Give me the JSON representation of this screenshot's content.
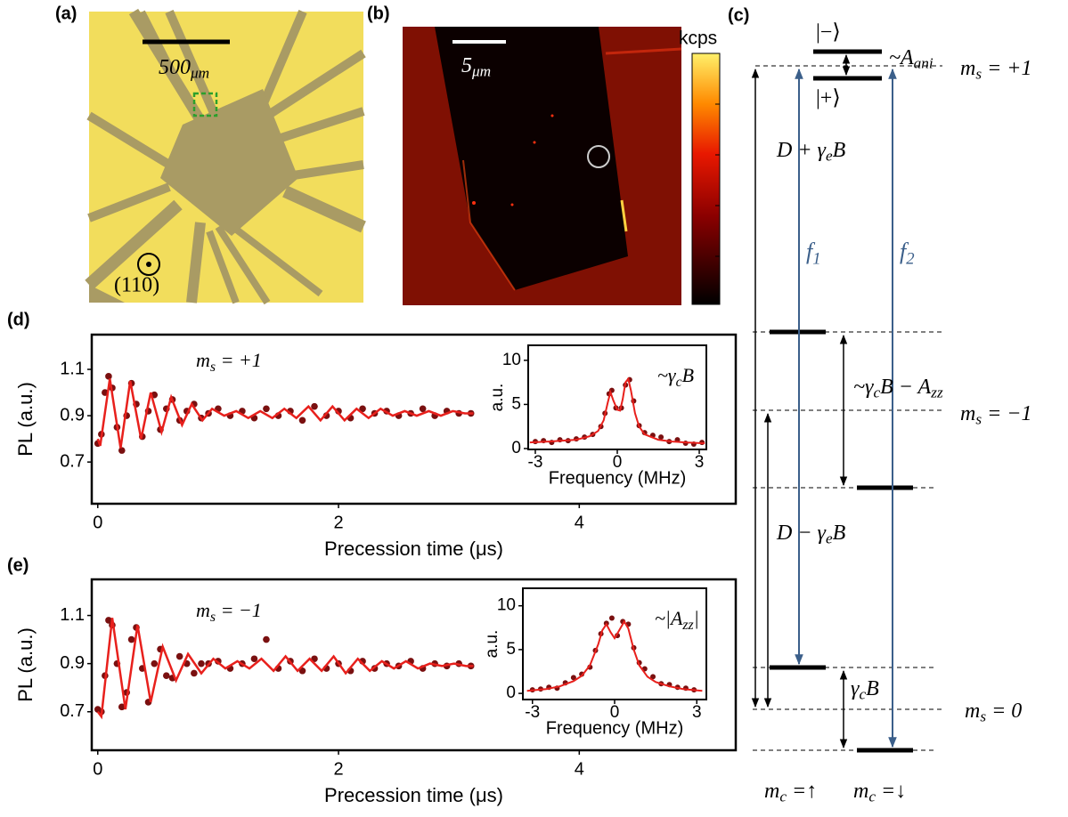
{
  "panel_a": {
    "label": "(a)",
    "scale_bar": [
      "500",
      "μm"
    ],
    "orientation": "(110)"
  },
  "panel_b": {
    "label": "(b)",
    "scale_bar": [
      "5",
      "μm"
    ],
    "colorbar_label": "kcps"
  },
  "diagram": {
    "label": "(c)",
    "ket_minus": "|−⟩",
    "ket_plus": "|+⟩",
    "A_ani": [
      "~A",
      "ani"
    ],
    "ms_p1": [
      "m",
      "s",
      " = +1"
    ],
    "ms_m1": [
      "m",
      "s",
      " = −1"
    ],
    "ms_0": [
      "m",
      "s",
      " = 0"
    ],
    "D_plus": [
      "D + γ",
      "e",
      "B"
    ],
    "D_minus": [
      "D − γ",
      "e",
      "B"
    ],
    "f1": [
      "f",
      "1"
    ],
    "f2": [
      "f",
      "2"
    ],
    "gcB_Azz": [
      "~γ",
      "c",
      "B − A",
      "zz"
    ],
    "gcB": [
      "γ",
      "c",
      "B"
    ],
    "mc_up": [
      "m",
      "c",
      " =↑"
    ],
    "mc_down": [
      "m",
      "c",
      " =↓"
    ]
  },
  "chart_data": [
    {
      "type": "scatter",
      "label": "(d)",
      "xlabel": "Precession time (μs)",
      "ylabel": "PL (a.u.)",
      "annotation": [
        "m",
        "s",
        " = +1"
      ],
      "xlim": [
        -0.05,
        5.3
      ],
      "ylim": [
        0.52,
        1.25
      ],
      "xticks": [
        0,
        2,
        4
      ],
      "yticks": [
        0.7,
        0.9,
        1.1
      ],
      "series": [
        {
          "color": "#7a1010",
          "marker": true,
          "x": [
            0,
            0.03,
            0.06,
            0.09,
            0.12,
            0.16,
            0.2,
            0.24,
            0.28,
            0.32,
            0.37,
            0.42,
            0.47,
            0.52,
            0.57,
            0.62,
            0.68,
            0.74,
            0.8,
            0.86,
            0.92,
            1.0,
            1.1,
            1.2,
            1.3,
            1.4,
            1.5,
            1.6,
            1.7,
            1.8,
            1.9,
            2.0,
            2.1,
            2.2,
            2.3,
            2.4,
            2.5,
            2.6,
            2.7,
            2.8,
            2.9,
            3.0,
            3.1
          ],
          "values": [
            0.78,
            0.82,
            1.0,
            1.07,
            1.02,
            0.85,
            0.75,
            0.9,
            1.04,
            0.95,
            0.81,
            0.92,
            0.99,
            0.84,
            0.93,
            0.97,
            0.88,
            0.92,
            0.95,
            0.89,
            0.91,
            0.93,
            0.9,
            0.92,
            0.89,
            0.93,
            0.9,
            0.92,
            0.88,
            0.94,
            0.9,
            0.92,
            0.89,
            0.93,
            0.91,
            0.92,
            0.9,
            0.91,
            0.93,
            0.9,
            0.92,
            0.91,
            0.91
          ]
        },
        {
          "color": "#e8201c",
          "line": true,
          "x": [
            0,
            0.02,
            0.1,
            0.19,
            0.27,
            0.36,
            0.44,
            0.53,
            0.61,
            0.7,
            0.78,
            0.87,
            0.95,
            1.05,
            1.15,
            1.25,
            1.35,
            1.45,
            1.55,
            1.65,
            1.75,
            1.85,
            1.95,
            2.05,
            2.15,
            2.25,
            2.35,
            2.45,
            2.55,
            2.65,
            2.75,
            2.85,
            2.95,
            3.05,
            3.12
          ],
          "values": [
            0.8,
            0.77,
            1.06,
            0.76,
            1.05,
            0.8,
            1.0,
            0.83,
            0.98,
            0.86,
            0.95,
            0.88,
            0.93,
            0.9,
            0.92,
            0.89,
            0.92,
            0.89,
            0.93,
            0.89,
            0.94,
            0.88,
            0.94,
            0.88,
            0.93,
            0.89,
            0.93,
            0.9,
            0.92,
            0.9,
            0.92,
            0.9,
            0.92,
            0.91,
            0.91
          ]
        }
      ]
    },
    {
      "type": "scatter",
      "xlabel": "Frequency (MHz)",
      "ylabel": "a.u.",
      "annotation": [
        "~γ",
        "c",
        "B"
      ],
      "xlim": [
        -3.26,
        3.26
      ],
      "ylim": [
        -0.1,
        11.7
      ],
      "xticks": [
        -3,
        0,
        3
      ],
      "yticks": [
        0,
        5,
        10
      ],
      "series": [
        {
          "color": "#7a1010",
          "marker": true,
          "x": [
            -3,
            -2.7,
            -2.4,
            -2.1,
            -1.8,
            -1.5,
            -1.2,
            -0.9,
            -0.6,
            -0.45,
            -0.3,
            -0.2,
            -0.05,
            0.15,
            0.3,
            0.45,
            0.6,
            0.8,
            1.0,
            1.3,
            1.6,
            1.9,
            2.2,
            2.5,
            2.8,
            3.1
          ],
          "values": [
            0.8,
            0.9,
            0.7,
            1.0,
            0.9,
            1.1,
            1.3,
            1.6,
            2.5,
            4.0,
            6.2,
            6.6,
            4.6,
            4.6,
            7.2,
            7.8,
            5.4,
            2.6,
            1.8,
            1.5,
            1.3,
            0.8,
            1.0,
            0.6,
            0.5,
            0.7
          ]
        },
        {
          "color": "#e8201c",
          "line": true,
          "x": [
            -3.2,
            -2.5,
            -2,
            -1.5,
            -1,
            -0.7,
            -0.5,
            -0.35,
            -0.25,
            -0.15,
            0,
            0.1,
            0.2,
            0.3,
            0.4,
            0.5,
            0.65,
            0.8,
            1,
            1.5,
            2,
            2.5,
            3.2
          ],
          "values": [
            0.7,
            0.8,
            0.9,
            1.0,
            1.4,
            2.0,
            3.2,
            5.2,
            6.4,
            5.5,
            4.4,
            4.3,
            5.6,
            7.5,
            7.9,
            6.6,
            4.0,
            2.5,
            1.6,
            1.0,
            0.8,
            0.7,
            0.6
          ]
        }
      ]
    },
    {
      "type": "scatter",
      "label": "(e)",
      "xlabel": "Precession time (μs)",
      "ylabel": "PL (a.u.)",
      "annotation": [
        "m",
        "s",
        " = −1"
      ],
      "xlim": [
        -0.05,
        5.3
      ],
      "ylim": [
        0.54,
        1.25
      ],
      "xticks": [
        0,
        2,
        4
      ],
      "yticks": [
        0.7,
        0.9,
        1.1
      ],
      "series": [
        {
          "color": "#7a1010",
          "marker": true,
          "x": [
            0,
            0.03,
            0.06,
            0.09,
            0.12,
            0.16,
            0.2,
            0.24,
            0.28,
            0.32,
            0.37,
            0.42,
            0.47,
            0.52,
            0.57,
            0.62,
            0.68,
            0.74,
            0.8,
            0.86,
            0.92,
            1.0,
            1.1,
            1.2,
            1.3,
            1.4,
            1.5,
            1.6,
            1.7,
            1.8,
            1.9,
            2.0,
            2.1,
            2.2,
            2.3,
            2.4,
            2.5,
            2.6,
            2.7,
            2.8,
            2.9,
            3.0,
            3.1
          ],
          "values": [
            0.71,
            0.7,
            0.85,
            1.08,
            1.06,
            0.9,
            0.72,
            0.78,
            1.0,
            1.05,
            0.88,
            0.74,
            0.9,
            0.96,
            0.85,
            0.84,
            0.93,
            0.9,
            0.86,
            0.9,
            0.9,
            0.91,
            0.88,
            0.9,
            0.92,
            1.0,
            0.88,
            0.91,
            0.87,
            0.92,
            0.88,
            0.9,
            0.87,
            0.91,
            0.88,
            0.9,
            0.89,
            0.91,
            0.88,
            0.9,
            0.89,
            0.9,
            0.89
          ]
        },
        {
          "color": "#e8201c",
          "line": true,
          "x": [
            0,
            0.03,
            0.12,
            0.23,
            0.33,
            0.44,
            0.54,
            0.65,
            0.75,
            0.86,
            0.96,
            1.06,
            1.16,
            1.26,
            1.36,
            1.46,
            1.56,
            1.66,
            1.76,
            1.86,
            1.96,
            2.06,
            2.16,
            2.26,
            2.36,
            2.46,
            2.56,
            2.66,
            2.76,
            2.86,
            2.96,
            3.06,
            3.12
          ],
          "values": [
            0.7,
            0.68,
            1.09,
            0.71,
            1.06,
            0.74,
            0.97,
            0.83,
            0.94,
            0.86,
            0.92,
            0.88,
            0.91,
            0.88,
            0.92,
            0.87,
            0.93,
            0.87,
            0.92,
            0.87,
            0.93,
            0.86,
            0.92,
            0.87,
            0.91,
            0.88,
            0.91,
            0.88,
            0.9,
            0.89,
            0.9,
            0.89,
            0.89
          ]
        }
      ]
    },
    {
      "type": "scatter",
      "xlabel": "Frequency (MHz)",
      "ylabel": "a.u.",
      "annotation": [
        "~|A",
        "zz",
        "|"
      ],
      "xlim": [
        -3.35,
        3.35
      ],
      "ylim": [
        -0.7,
        12
      ],
      "xticks": [
        -3,
        0,
        3
      ],
      "yticks": [
        0,
        5,
        10
      ],
      "series": [
        {
          "color": "#7a1010",
          "marker": true,
          "x": [
            -3,
            -2.7,
            -2.4,
            -2.1,
            -1.8,
            -1.5,
            -1.2,
            -0.9,
            -0.7,
            -0.5,
            -0.3,
            -0.1,
            0.1,
            0.3,
            0.5,
            0.7,
            0.9,
            1.1,
            1.4,
            1.7,
            2.0,
            2.3,
            2.6,
            2.9
          ],
          "values": [
            0.4,
            0.5,
            0.7,
            0.6,
            1.2,
            1.8,
            2.2,
            3.0,
            4.9,
            6.8,
            8.0,
            8.6,
            6.6,
            8.2,
            7.9,
            5.2,
            3.5,
            2.8,
            1.9,
            1.1,
            1.0,
            0.7,
            0.6,
            0.4
          ]
        },
        {
          "color": "#e8201c",
          "line": true,
          "x": [
            -3.2,
            -2.5,
            -2,
            -1.5,
            -1.2,
            -0.9,
            -0.6,
            -0.45,
            -0.3,
            -0.15,
            0,
            0.15,
            0.35,
            0.5,
            0.7,
            0.9,
            1.2,
            1.5,
            2,
            2.5,
            3.2
          ],
          "values": [
            0.3,
            0.5,
            0.8,
            1.4,
            2.0,
            3.2,
            5.6,
            7.2,
            7.9,
            7.0,
            6.3,
            7.1,
            8.2,
            7.4,
            5.0,
            3.2,
            1.9,
            1.3,
            0.8,
            0.5,
            0.3
          ]
        }
      ]
    }
  ]
}
